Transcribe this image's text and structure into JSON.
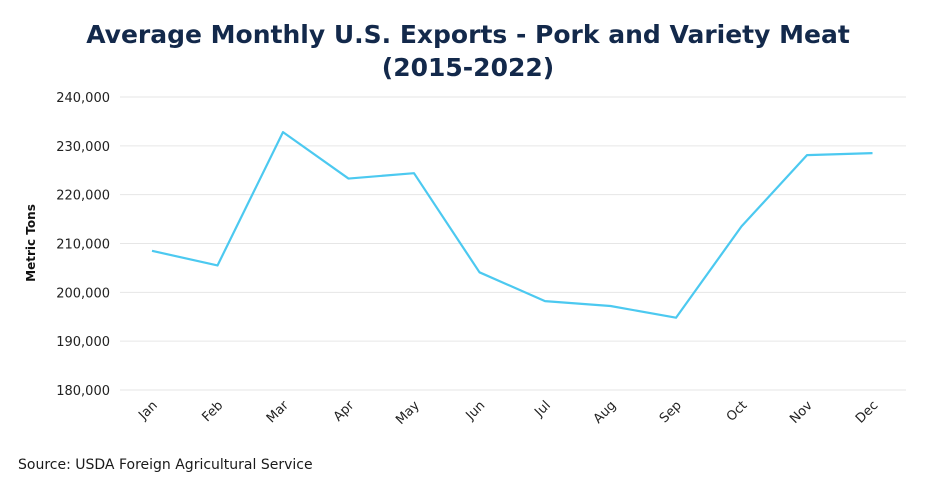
{
  "chart_data": {
    "type": "line",
    "title_line1": "Average Monthly U.S. Exports - Pork and Variety Meat",
    "title_line2": "(2015-2022)",
    "xlabel": "",
    "ylabel": "Metric Tons",
    "categories": [
      "Jan",
      "Feb",
      "Mar",
      "Apr",
      "May",
      "Jun",
      "Jul",
      "Aug",
      "Sep",
      "Oct",
      "Nov",
      "Dec"
    ],
    "series": [
      {
        "values": [
          208500,
          205500,
          232800,
          223300,
          224400,
          204100,
          198200,
          197200,
          194800,
          213500,
          228100,
          228500
        ]
      }
    ],
    "ylim": [
      180000,
      240000
    ],
    "yticks": [
      180000,
      190000,
      200000,
      210000,
      220000,
      230000,
      240000
    ],
    "ytick_labels": [
      "180,000",
      "190,000",
      "200,000",
      "210,000",
      "220,000",
      "230,000",
      "240,000"
    ],
    "grid": true,
    "line_color": "#4cc9f0",
    "source": "Source: USDA Foreign Agricultural Service"
  }
}
